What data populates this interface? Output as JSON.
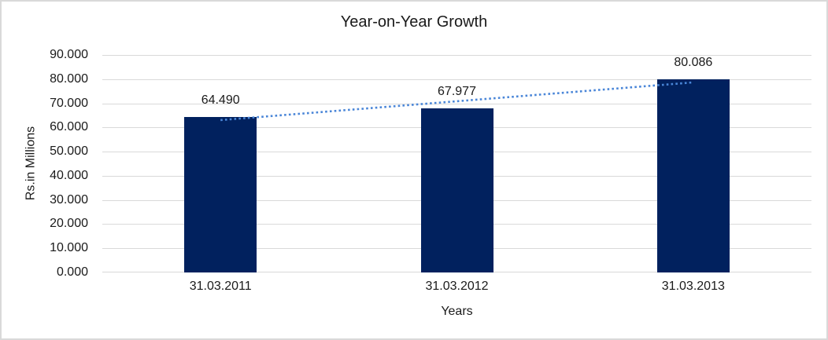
{
  "chart_data": {
    "type": "bar",
    "title": "Year-on-Year Growth",
    "categories": [
      "31.03.2011",
      "31.03.2012",
      "31.03.2013"
    ],
    "values": [
      64.49,
      67.977,
      80.086
    ],
    "value_labels": [
      "64.490",
      "67.977",
      "80.086"
    ],
    "xlabel": "Years",
    "ylabel": "Rs.in Millions",
    "ylim": [
      0,
      90
    ],
    "ytick_step": 10,
    "ytick_labels": [
      "0.000",
      "10.000",
      "20.000",
      "30.000",
      "40.000",
      "50.000",
      "60.000",
      "70.000",
      "80.000",
      "90.000"
    ],
    "grid": true,
    "legend": "none",
    "trendline": {
      "type": "linear",
      "style": "dotted"
    },
    "colors": {
      "bar": "#01215E",
      "trendline": "#4A86D8",
      "gridline": "#D9D9D9",
      "text": "#1A1A1A",
      "frame_border": "#D9D9D9",
      "background": "#FFFFFF"
    }
  }
}
